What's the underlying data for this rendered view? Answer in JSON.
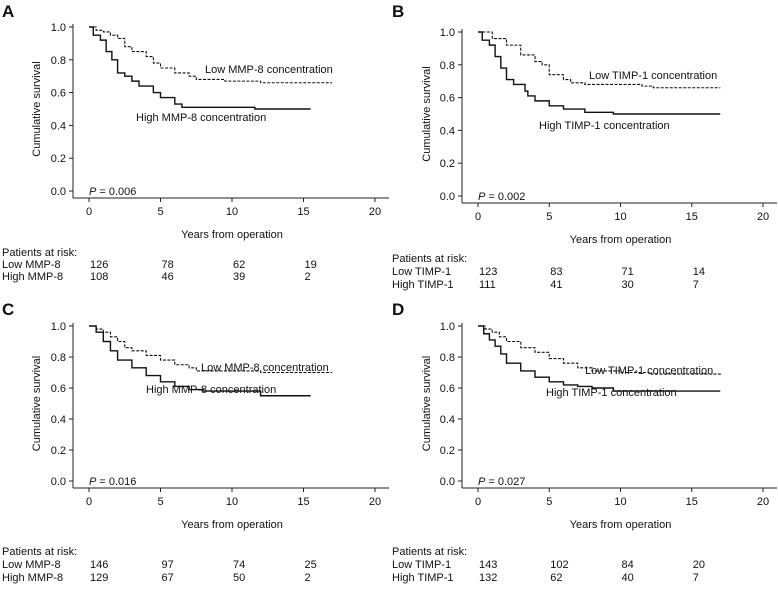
{
  "chart_data": [
    {
      "type": "line",
      "panel": "A",
      "ylabel": "Cumulative survival",
      "xlabel": "Years from operation",
      "xlim": [
        0,
        20
      ],
      "ylim": [
        0,
        1
      ],
      "xticks": [
        "0",
        "5",
        "10",
        "15",
        "20"
      ],
      "yticks": [
        "0.0",
        "0.2",
        "0.4",
        "0.6",
        "0.8",
        "1.0"
      ],
      "p_label": "P",
      "p_value": "= 0.006",
      "series": [
        {
          "name": "Low MMP-8 concentration",
          "style": "dashed",
          "x": [
            0,
            0.5,
            1,
            1.5,
            2,
            2.5,
            3,
            4,
            4.5,
            5,
            6,
            7,
            7.5,
            9.5,
            12,
            17
          ],
          "y": [
            1,
            0.98,
            0.97,
            0.95,
            0.93,
            0.88,
            0.85,
            0.82,
            0.78,
            0.75,
            0.72,
            0.7,
            0.68,
            0.67,
            0.66,
            0.66
          ]
        },
        {
          "name": "High MMP-8 concentration",
          "style": "solid",
          "x": [
            0,
            0.3,
            0.8,
            1.2,
            1.6,
            2,
            2.5,
            3,
            3.5,
            4.5,
            5,
            6,
            6.5,
            11.6,
            15.5
          ],
          "y": [
            1,
            0.95,
            0.92,
            0.85,
            0.8,
            0.72,
            0.7,
            0.67,
            0.64,
            0.6,
            0.57,
            0.53,
            0.51,
            0.5,
            0.5
          ]
        }
      ],
      "risk": {
        "title": "Patients at risk:",
        "rows": [
          {
            "label": "Low MMP-8",
            "values": [
              "126",
              "78",
              "62",
              "19"
            ]
          },
          {
            "label": "High MMP-8",
            "values": [
              "108",
              "46",
              "39",
              "2"
            ]
          }
        ]
      }
    },
    {
      "type": "line",
      "panel": "B",
      "ylabel": "Cumulative survival",
      "xlabel": "Years from operation",
      "xlim": [
        0,
        20
      ],
      "ylim": [
        0,
        1
      ],
      "xticks": [
        "0",
        "5",
        "10",
        "15",
        "20"
      ],
      "yticks": [
        "0.0",
        "0.2",
        "0.4",
        "0.6",
        "0.8",
        "1.0"
      ],
      "p_label": "P",
      "p_value": "= 0.002",
      "series": [
        {
          "name": "Low TIMP-1 concentration",
          "style": "dashed",
          "x": [
            0,
            1,
            2,
            3,
            4,
            4.5,
            5,
            6,
            6.5,
            7.5,
            11.5,
            12.3,
            17
          ],
          "y": [
            1,
            0.96,
            0.92,
            0.86,
            0.82,
            0.8,
            0.74,
            0.71,
            0.69,
            0.68,
            0.67,
            0.66,
            0.66
          ]
        },
        {
          "name": "High TIMP-1 concentration",
          "style": "solid",
          "x": [
            0,
            0.3,
            0.8,
            1.2,
            1.6,
            2,
            2.5,
            3.3,
            3.5,
            4,
            5,
            6,
            7.5,
            9.5,
            17
          ],
          "y": [
            1,
            0.95,
            0.92,
            0.85,
            0.78,
            0.71,
            0.68,
            0.64,
            0.61,
            0.58,
            0.55,
            0.53,
            0.51,
            0.5,
            0.5
          ]
        }
      ],
      "risk": {
        "title": "Patients at risk:",
        "rows": [
          {
            "label": "Low TIMP-1",
            "values": [
              "123",
              "83",
              "71",
              "14"
            ]
          },
          {
            "label": "High TIMP-1",
            "values": [
              "111",
              "41",
              "30",
              "7"
            ]
          }
        ]
      }
    },
    {
      "type": "line",
      "panel": "C",
      "ylabel": "Cumulative survival",
      "xlabel": "Years from operation",
      "xlim": [
        0,
        20
      ],
      "ylim": [
        0,
        1
      ],
      "xticks": [
        "0",
        "5",
        "10",
        "15",
        "20"
      ],
      "yticks": [
        "0.0",
        "0.2",
        "0.4",
        "0.6",
        "0.8",
        "1.0"
      ],
      "p_label": "P",
      "p_value": "= 0.016",
      "series": [
        {
          "name": "Low MMP-8 concentration",
          "style": "dashed",
          "x": [
            0,
            0.5,
            1,
            1.5,
            2,
            2.5,
            3,
            4,
            5,
            6,
            7,
            7.5,
            10,
            12,
            17
          ],
          "y": [
            1,
            0.98,
            0.96,
            0.93,
            0.9,
            0.86,
            0.84,
            0.81,
            0.78,
            0.75,
            0.73,
            0.71,
            0.71,
            0.7,
            0.7
          ]
        },
        {
          "name": "High MMP-8 concentration",
          "style": "solid",
          "x": [
            0,
            0.5,
            1,
            1.5,
            2,
            3,
            4,
            5,
            6,
            7,
            8,
            12,
            15.5
          ],
          "y": [
            1,
            0.96,
            0.9,
            0.84,
            0.78,
            0.73,
            0.68,
            0.64,
            0.61,
            0.59,
            0.58,
            0.55,
            0.55
          ]
        }
      ],
      "risk": {
        "title": "Patients at risk:",
        "rows": [
          {
            "label": "Low MMP-8",
            "values": [
              "146",
              "97",
              "74",
              "25"
            ]
          },
          {
            "label": "High MMP-8",
            "values": [
              "129",
              "67",
              "50",
              "2"
            ]
          }
        ]
      }
    },
    {
      "type": "line",
      "panel": "D",
      "ylabel": "Cumulative survival",
      "xlabel": "Years from operation",
      "xlim": [
        0,
        20
      ],
      "ylim": [
        0,
        1
      ],
      "xticks": [
        "0",
        "5",
        "10",
        "15",
        "20"
      ],
      "yticks": [
        "0.0",
        "0.2",
        "0.4",
        "0.6",
        "0.8",
        "1.0"
      ],
      "p_label": "P",
      "p_value": "= 0.027",
      "series": [
        {
          "name": "Low TIMP-1 concentration",
          "style": "dashed",
          "x": [
            0,
            0.5,
            1,
            1.5,
            2,
            3,
            4,
            5,
            6,
            7,
            8,
            10,
            12,
            17
          ],
          "y": [
            1,
            0.98,
            0.96,
            0.93,
            0.9,
            0.86,
            0.83,
            0.79,
            0.76,
            0.73,
            0.71,
            0.7,
            0.69,
            0.68
          ]
        },
        {
          "name": "High TIMP-1 concentration",
          "style": "solid",
          "x": [
            0,
            0.4,
            0.8,
            1.2,
            1.6,
            2,
            3,
            4,
            5,
            6,
            7,
            8,
            9.5,
            17
          ],
          "y": [
            1,
            0.95,
            0.91,
            0.87,
            0.82,
            0.76,
            0.71,
            0.67,
            0.64,
            0.62,
            0.61,
            0.6,
            0.58,
            0.58
          ]
        }
      ],
      "risk": {
        "title": "Patients at risk:",
        "rows": [
          {
            "label": "Low TIMP-1",
            "values": [
              "143",
              "102",
              "84",
              "20"
            ]
          },
          {
            "label": "High TIMP-1",
            "values": [
              "132",
              "62",
              "40",
              "7"
            ]
          }
        ]
      }
    }
  ]
}
